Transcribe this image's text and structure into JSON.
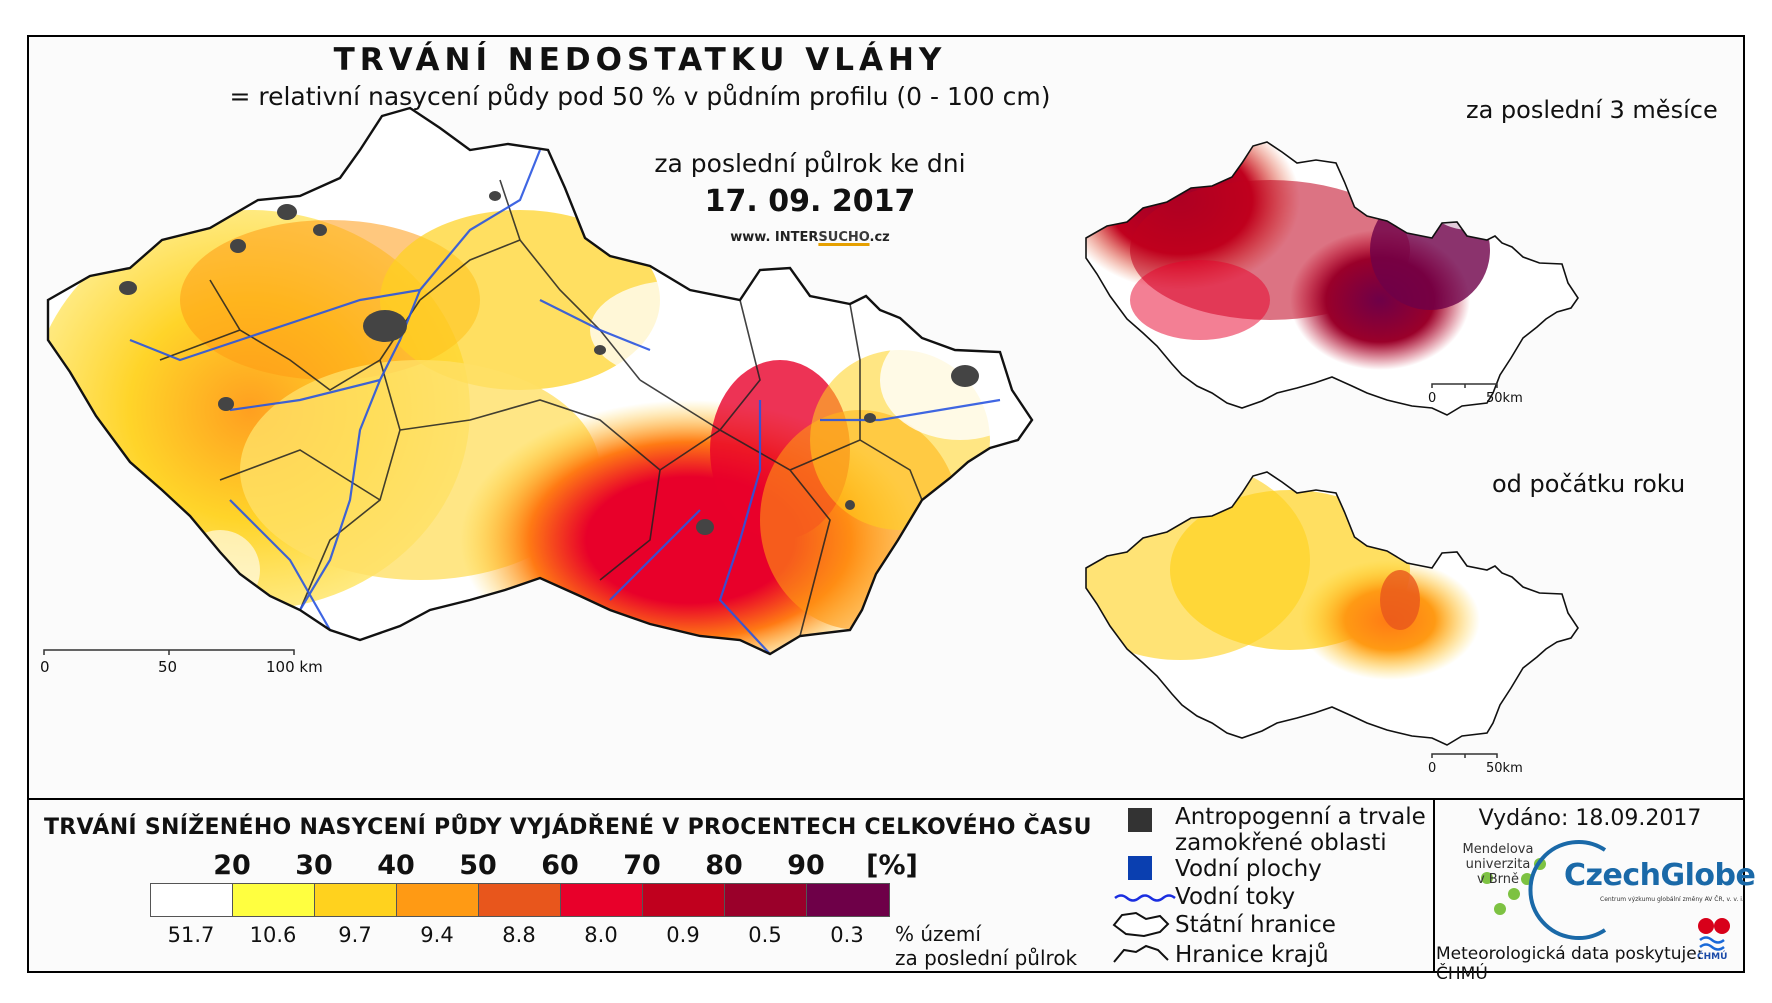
{
  "title": "TRVÁNÍ NEDOSTATKU VLÁHY",
  "subtitle": "= relativní nasycení půdy pod 50 % v půdním profilu (0 - 100 cm)",
  "main_map": {
    "period_label": "za poslední půlrok ke dni",
    "date": "17. 09. 2017",
    "web_prefix": "www. INTER",
    "web_highlight": "SUCHO",
    "web_suffix": ".cz",
    "scale": {
      "zero": "0",
      "mid": "50",
      "end": "100 km"
    }
  },
  "inset_3m": {
    "title": "za poslední 3 měsíce",
    "scale": {
      "zero": "0",
      "end": "50km"
    }
  },
  "inset_year": {
    "title": "od počátku roku",
    "scale": {
      "zero": "0",
      "end": "50km"
    }
  },
  "legend": {
    "title": "TRVÁNÍ SNÍŽENÉHO NASYCENÍ PŮDY VYJÁDŘENÉ V PROCENTECH CELKOVÉHO ČASU",
    "class_breaks": [
      "20",
      "30",
      "40",
      "50",
      "60",
      "70",
      "80",
      "90"
    ],
    "unit": "[%]",
    "colors": [
      "#ffffff",
      "#ffff40",
      "#ffd21e",
      "#ff9a14",
      "#e8561c",
      "#e8002a",
      "#c0001e",
      "#9a002a",
      "#6e0048"
    ],
    "territory_percent": [
      "51.7",
      "10.6",
      "9.7",
      "9.4",
      "8.8",
      "8.0",
      "0.9",
      "0.5",
      "0.3"
    ],
    "caption_line1": "% území",
    "caption_line2": "za poslední půlrok"
  },
  "key": {
    "anthropogenic_line1": "Antropogenní a trvale",
    "anthropogenic_line2": "zamokřené oblasti",
    "water_bodies": "Vodní plochy",
    "rivers": "Vodní toky",
    "state_border": "Státní hranice",
    "regional_border": "Hranice krajů"
  },
  "issued": "Vydáno: 18.09.2017",
  "logos": {
    "mendel_line1": "Mendelova",
    "mendel_line2": "univerzita",
    "mendel_line3": "v Brně",
    "czechglobe": "CzechGlobe",
    "czechglobe_sub": "Centrum výzkumu globální změny AV ČR, v. v. i.",
    "chmu": "ČHMÚ"
  },
  "provider": "Meteorologická data poskytuje: ČHMÚ"
}
